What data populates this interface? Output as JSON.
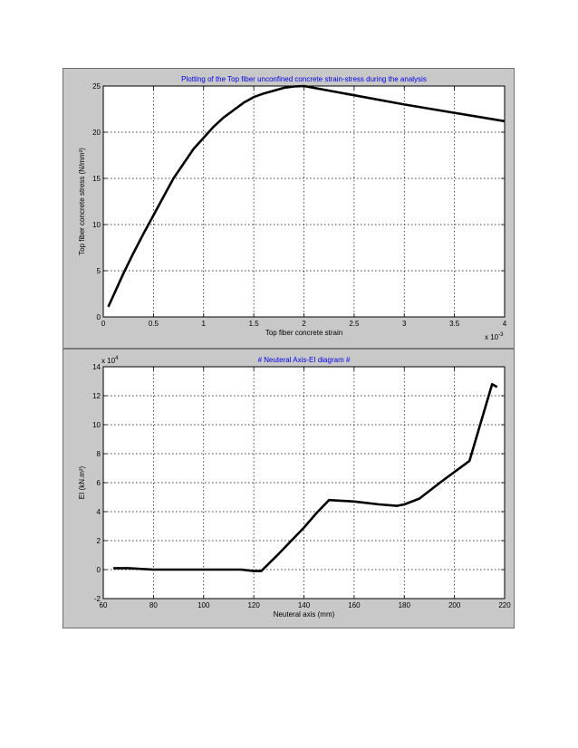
{
  "chart_data": [
    {
      "type": "line",
      "title": "Plotting of the Top fiber unconfined concrete strain-stress during the analysis",
      "xlabel": "Top fiber concrete strain",
      "ylabel": "Top fiber concrete stress (N/mm²)",
      "x_multiplier": "x 10",
      "x_multiplier_exp": "-3",
      "xlim": [
        0,
        0.004
      ],
      "ylim": [
        0,
        25
      ],
      "xticks": [
        0,
        0.0005,
        0.001,
        0.0015,
        0.002,
        0.0025,
        0.003,
        0.0035,
        0.004
      ],
      "xtick_labels": [
        "0",
        "0.5",
        "1",
        "1.5",
        "2",
        "2.5",
        "3",
        "3.5",
        "4"
      ],
      "yticks": [
        0,
        5,
        10,
        15,
        20,
        25
      ],
      "ytick_labels": [
        "0",
        "5",
        "10",
        "15",
        "20",
        "25"
      ],
      "grid": true,
      "series": [
        {
          "x": [
            5e-05,
            0.0001,
            0.0002,
            0.0003,
            0.0004,
            0.0005,
            0.0006,
            0.0007,
            0.0008,
            0.0009,
            0.001,
            0.0011,
            0.0012,
            0.0013,
            0.0014,
            0.0015,
            0.0016,
            0.0017,
            0.0018,
            0.0019,
            0.002,
            0.0025,
            0.003,
            0.0035,
            0.004
          ],
          "y": [
            1.1,
            2.3,
            4.7,
            6.9,
            9.0,
            11.0,
            13.0,
            15.0,
            16.6,
            18.2,
            19.4,
            20.6,
            21.6,
            22.4,
            23.2,
            23.8,
            24.2,
            24.5,
            24.8,
            24.95,
            25.0,
            24.0,
            23.0,
            22.1,
            21.2
          ]
        }
      ]
    },
    {
      "type": "line",
      "title": "# Neuteral Axis-EI diagram #",
      "xlabel": "Neuteral axis (mm)",
      "ylabel": "EI (kN.m²)",
      "y_multiplier": "x 10",
      "y_multiplier_exp": "4",
      "xlim": [
        60,
        220
      ],
      "ylim": [
        -2,
        14
      ],
      "xticks": [
        60,
        80,
        100,
        120,
        140,
        160,
        180,
        200,
        220
      ],
      "xtick_labels": [
        "60",
        "80",
        "100",
        "120",
        "140",
        "160",
        "180",
        "200",
        "220"
      ],
      "yticks": [
        -2,
        0,
        2,
        4,
        6,
        8,
        10,
        12,
        14
      ],
      "ytick_labels": [
        "-2",
        "0",
        "2",
        "4",
        "6",
        "8",
        "10",
        "12",
        "14"
      ],
      "grid": true,
      "series": [
        {
          "x": [
            64,
            70,
            80,
            100,
            115,
            120,
            123,
            130,
            140,
            145,
            150,
            160,
            170,
            177,
            180,
            186,
            195,
            206,
            215,
            217
          ],
          "y": [
            0.1,
            0.1,
            0.0,
            0.0,
            0.0,
            -0.1,
            -0.1,
            1.1,
            2.9,
            3.9,
            4.8,
            4.7,
            4.5,
            4.4,
            4.5,
            4.9,
            6.1,
            7.5,
            12.8,
            12.6
          ]
        }
      ]
    }
  ]
}
